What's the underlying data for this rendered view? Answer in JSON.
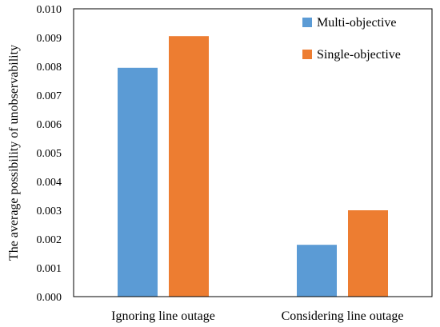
{
  "chart_data": {
    "type": "bar",
    "categories": [
      "Ignoring line outage",
      "Considering line outage"
    ],
    "series": [
      {
        "name": "Multi-objective",
        "values": [
          0.00795,
          0.0018
        ],
        "color": "#5B9BD5"
      },
      {
        "name": "Single-objective",
        "values": [
          0.00905,
          0.003
        ],
        "color": "#ED7D31"
      }
    ],
    "ylabel": "The average possibility of unobservability",
    "xlabel": "",
    "ylim": [
      0,
      0.01
    ],
    "yticks": [
      "0.000",
      "0.001",
      "0.002",
      "0.003",
      "0.004",
      "0.005",
      "0.006",
      "0.007",
      "0.008",
      "0.009",
      "0.010"
    ],
    "grid": false,
    "legend_position": "top-right"
  }
}
